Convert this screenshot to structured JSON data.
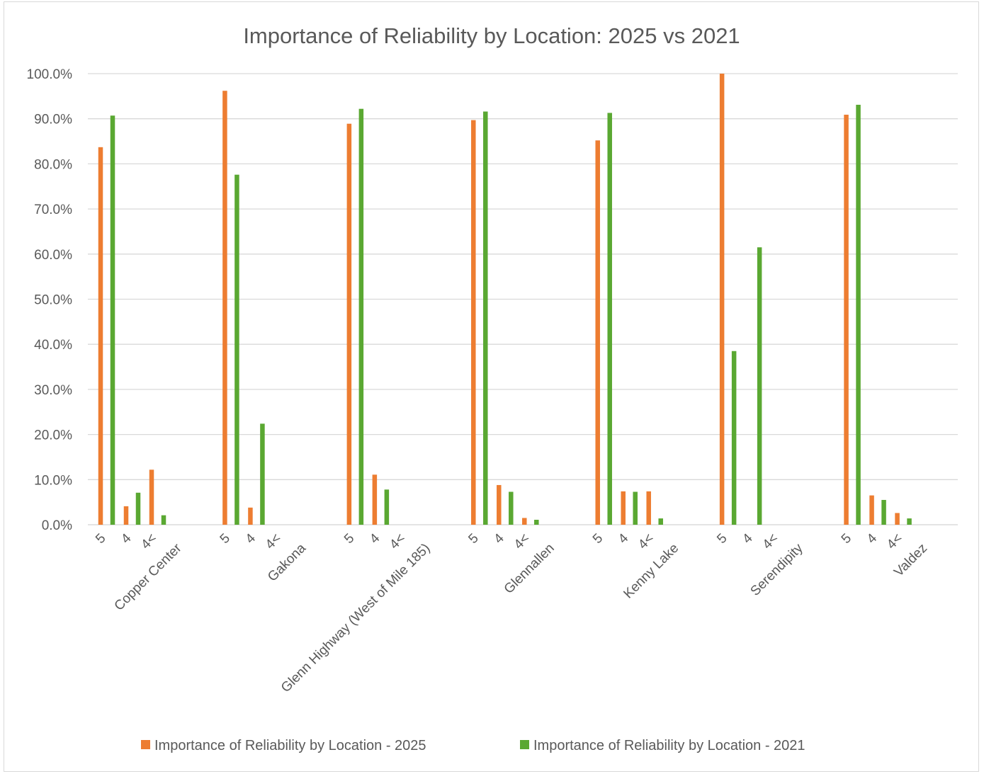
{
  "chart_data": {
    "type": "bar",
    "title": "Importance of Reliability by Location: 2025 vs 2021",
    "xlabel": "",
    "ylabel": "",
    "ylim": [
      0,
      1
    ],
    "yticks": [
      "0.0%",
      "10.0%",
      "20.0%",
      "30.0%",
      "40.0%",
      "50.0%",
      "60.0%",
      "70.0%",
      "80.0%",
      "90.0%",
      "100.0%"
    ],
    "grid": true,
    "legend_position": "bottom",
    "groups": [
      {
        "name": "Copper Center",
        "ratings": [
          "5",
          "4",
          "4<"
        ]
      },
      {
        "name": "Gakona",
        "ratings": [
          "5",
          "4",
          "4<"
        ]
      },
      {
        "name": "Glenn Highway (West of Mile 185)",
        "ratings": [
          "5",
          "4",
          "4<"
        ]
      },
      {
        "name": "Glennallen",
        "ratings": [
          "5",
          "4",
          "4<"
        ]
      },
      {
        "name": "Kenny Lake",
        "ratings": [
          "5",
          "4",
          "4<"
        ]
      },
      {
        "name": "Serendipity",
        "ratings": [
          "5",
          "4",
          "4<"
        ]
      },
      {
        "name": "Valdez",
        "ratings": [
          "5",
          "4",
          "4<"
        ]
      }
    ],
    "series": [
      {
        "name": "Importance of Reliability by Location - 2025",
        "color": "#ed7d31",
        "values": [
          [
            0.837,
            0.041,
            0.122
          ],
          [
            0.962,
            0.038,
            null
          ],
          [
            0.889,
            0.111,
            null
          ],
          [
            0.897,
            0.088,
            0.015
          ],
          [
            0.852,
            0.074,
            0.074
          ],
          [
            1.0,
            null,
            null
          ],
          [
            0.909,
            0.065,
            0.026
          ]
        ]
      },
      {
        "name": "Importance of Reliability by Location - 2021",
        "color": "#5aa832",
        "values": [
          [
            0.907,
            0.071,
            0.021
          ],
          [
            0.776,
            0.224,
            null
          ],
          [
            0.922,
            0.078,
            null
          ],
          [
            0.916,
            0.073,
            0.011
          ],
          [
            0.913,
            0.073,
            0.014
          ],
          [
            0.385,
            0.615,
            null
          ],
          [
            0.931,
            0.055,
            0.014
          ]
        ]
      }
    ]
  }
}
